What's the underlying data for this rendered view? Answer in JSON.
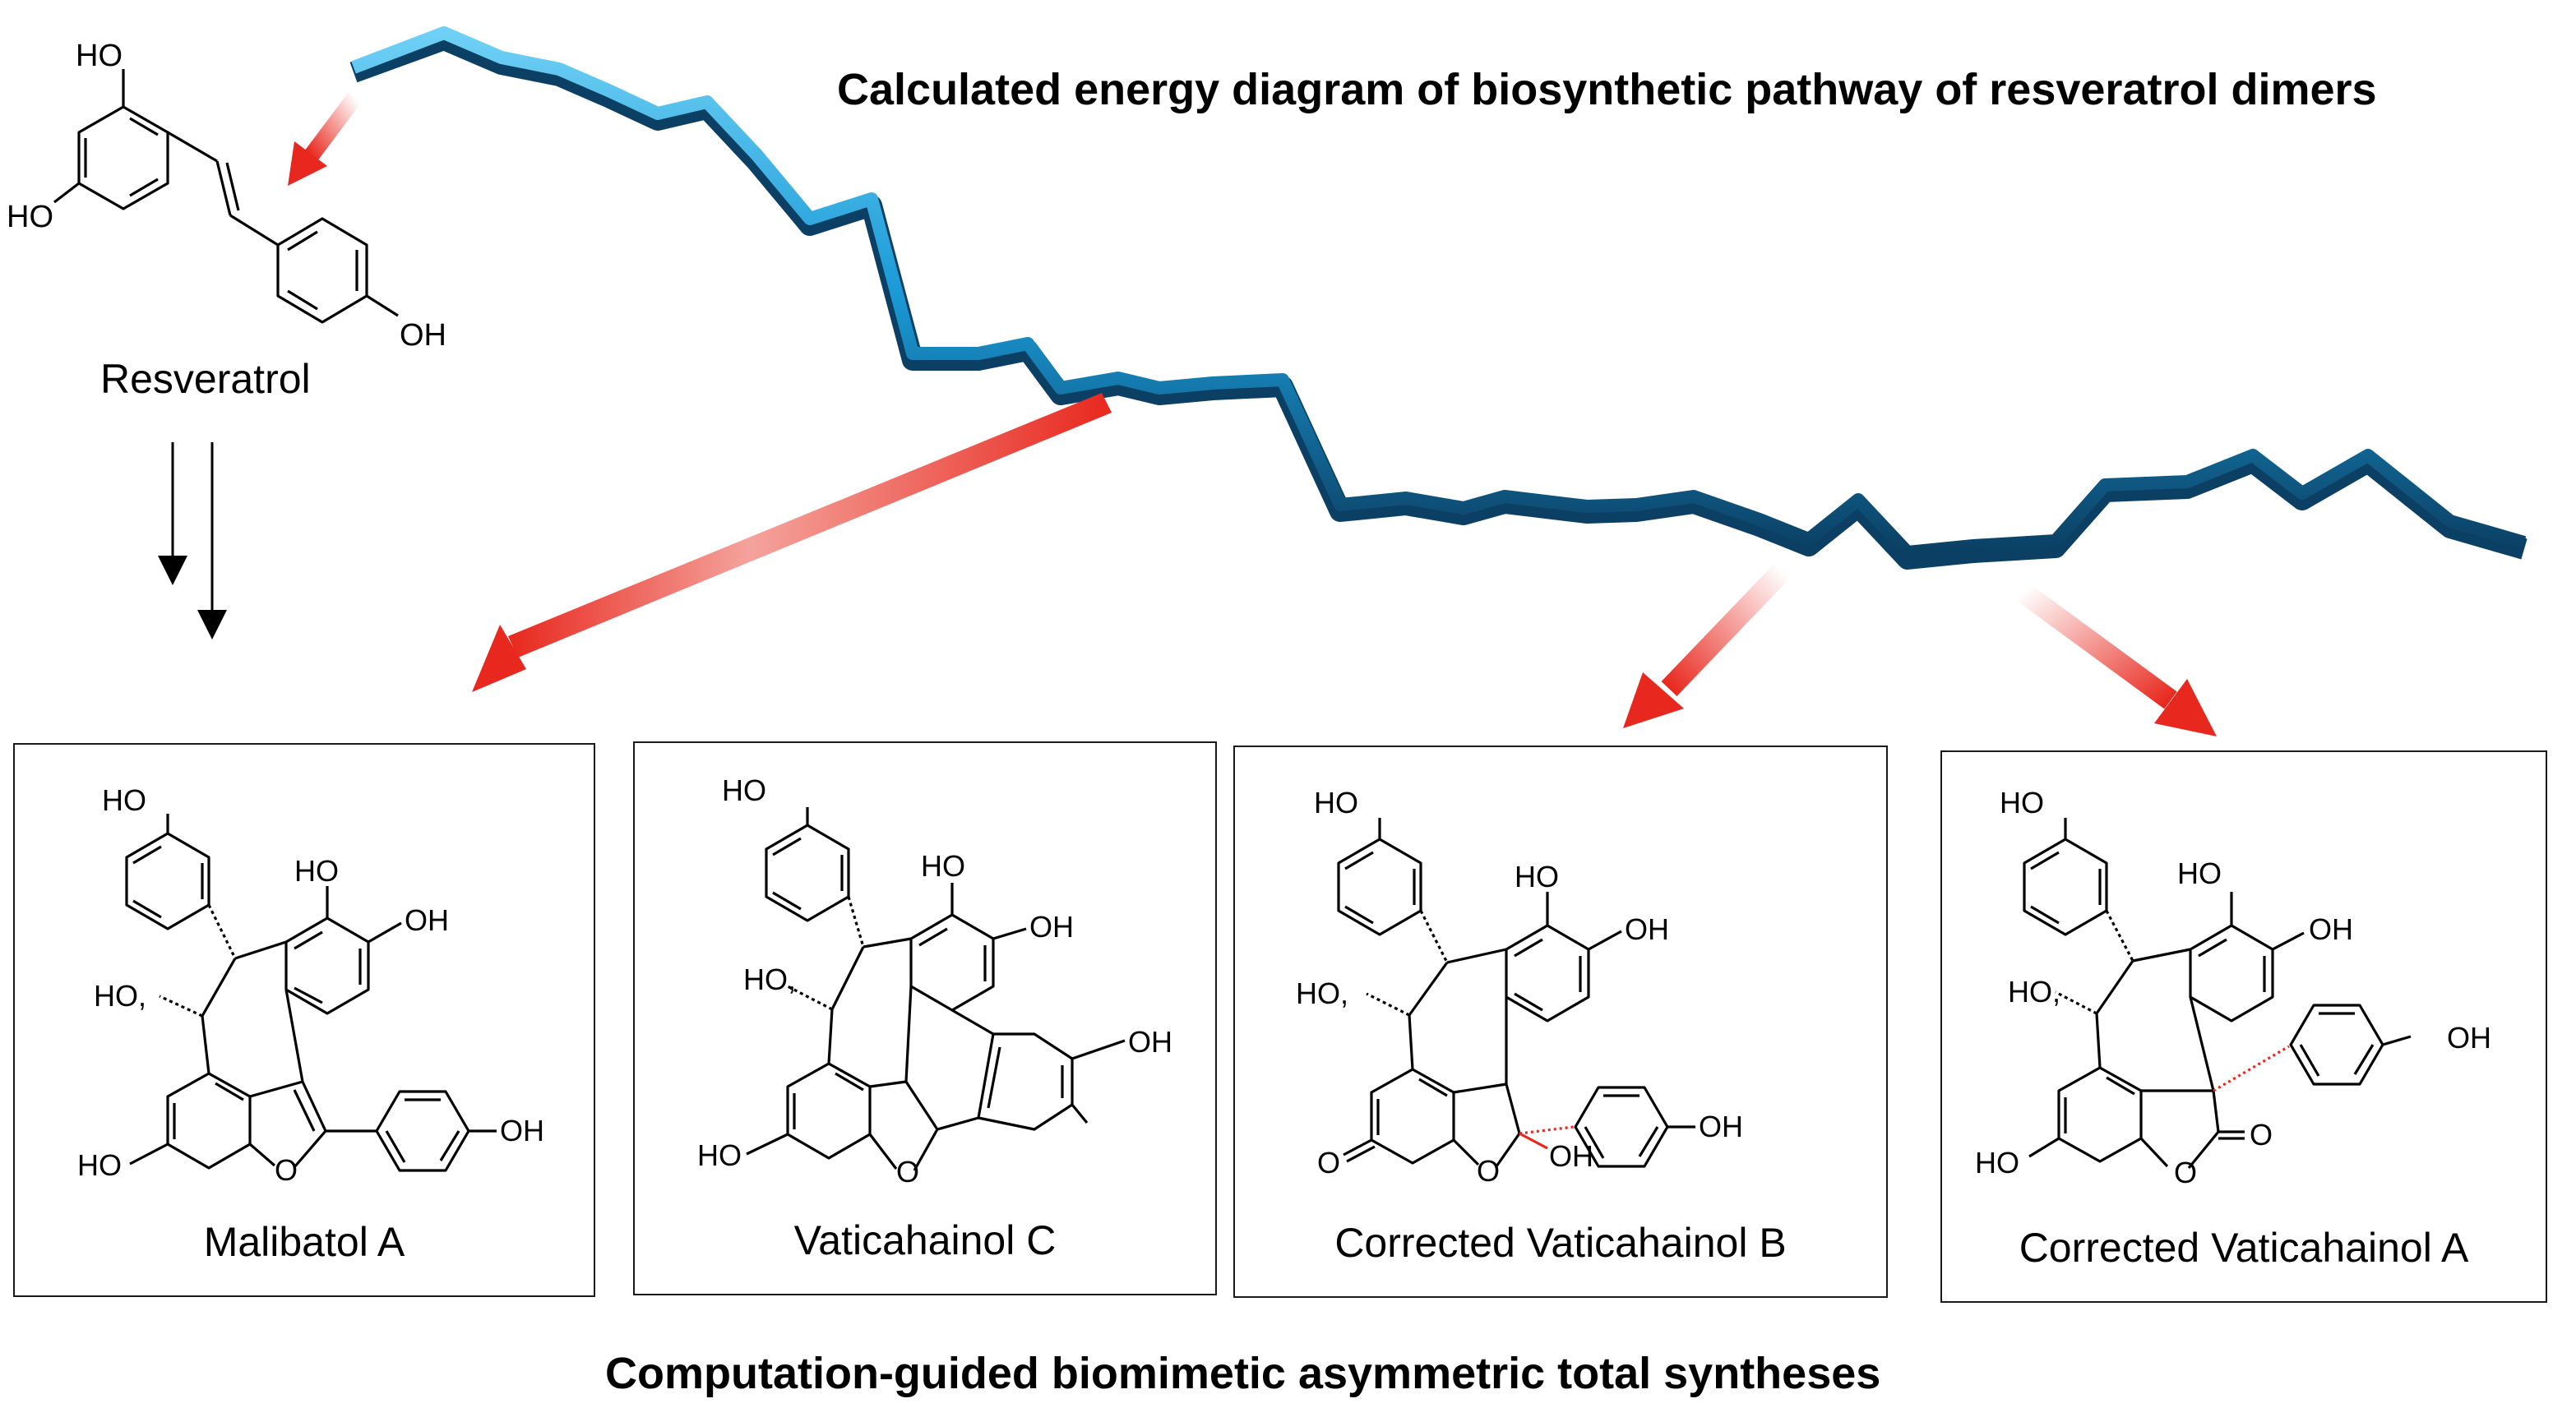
{
  "titles": {
    "top": "Calculated energy diagram of biosynthetic pathway of resveratrol dimers",
    "bottom": "Computation-guided biomimetic asymmetric total syntheses"
  },
  "start": {
    "name": "Resveratrol",
    "labels": {
      "ho_top": "HO",
      "ho_left": "HO",
      "oh_right": "OH"
    }
  },
  "products": [
    {
      "name": "Malibatol A",
      "labels": [
        "HO",
        "HO",
        "HO,",
        "OH",
        "OH",
        "HO",
        "O"
      ]
    },
    {
      "name": "Vaticahainol C",
      "labels": [
        "HO",
        "HO",
        "HO,",
        "OH",
        "OH",
        "HO",
        "O"
      ]
    },
    {
      "name": "Corrected Vaticahainol B",
      "labels": [
        "HO",
        "HO",
        "HO,",
        "OH",
        "OH",
        "O",
        "O",
        "OH"
      ]
    },
    {
      "name": "Corrected Vaticahainol A",
      "labels": [
        "HO",
        "HO",
        "HO,",
        "OH",
        "OH",
        "HO",
        "O",
        "O"
      ]
    }
  ],
  "colors": {
    "ribbon": "#1a9ad6",
    "ribbon_dark": "#0b3f63",
    "arrow": "#e8281e"
  }
}
